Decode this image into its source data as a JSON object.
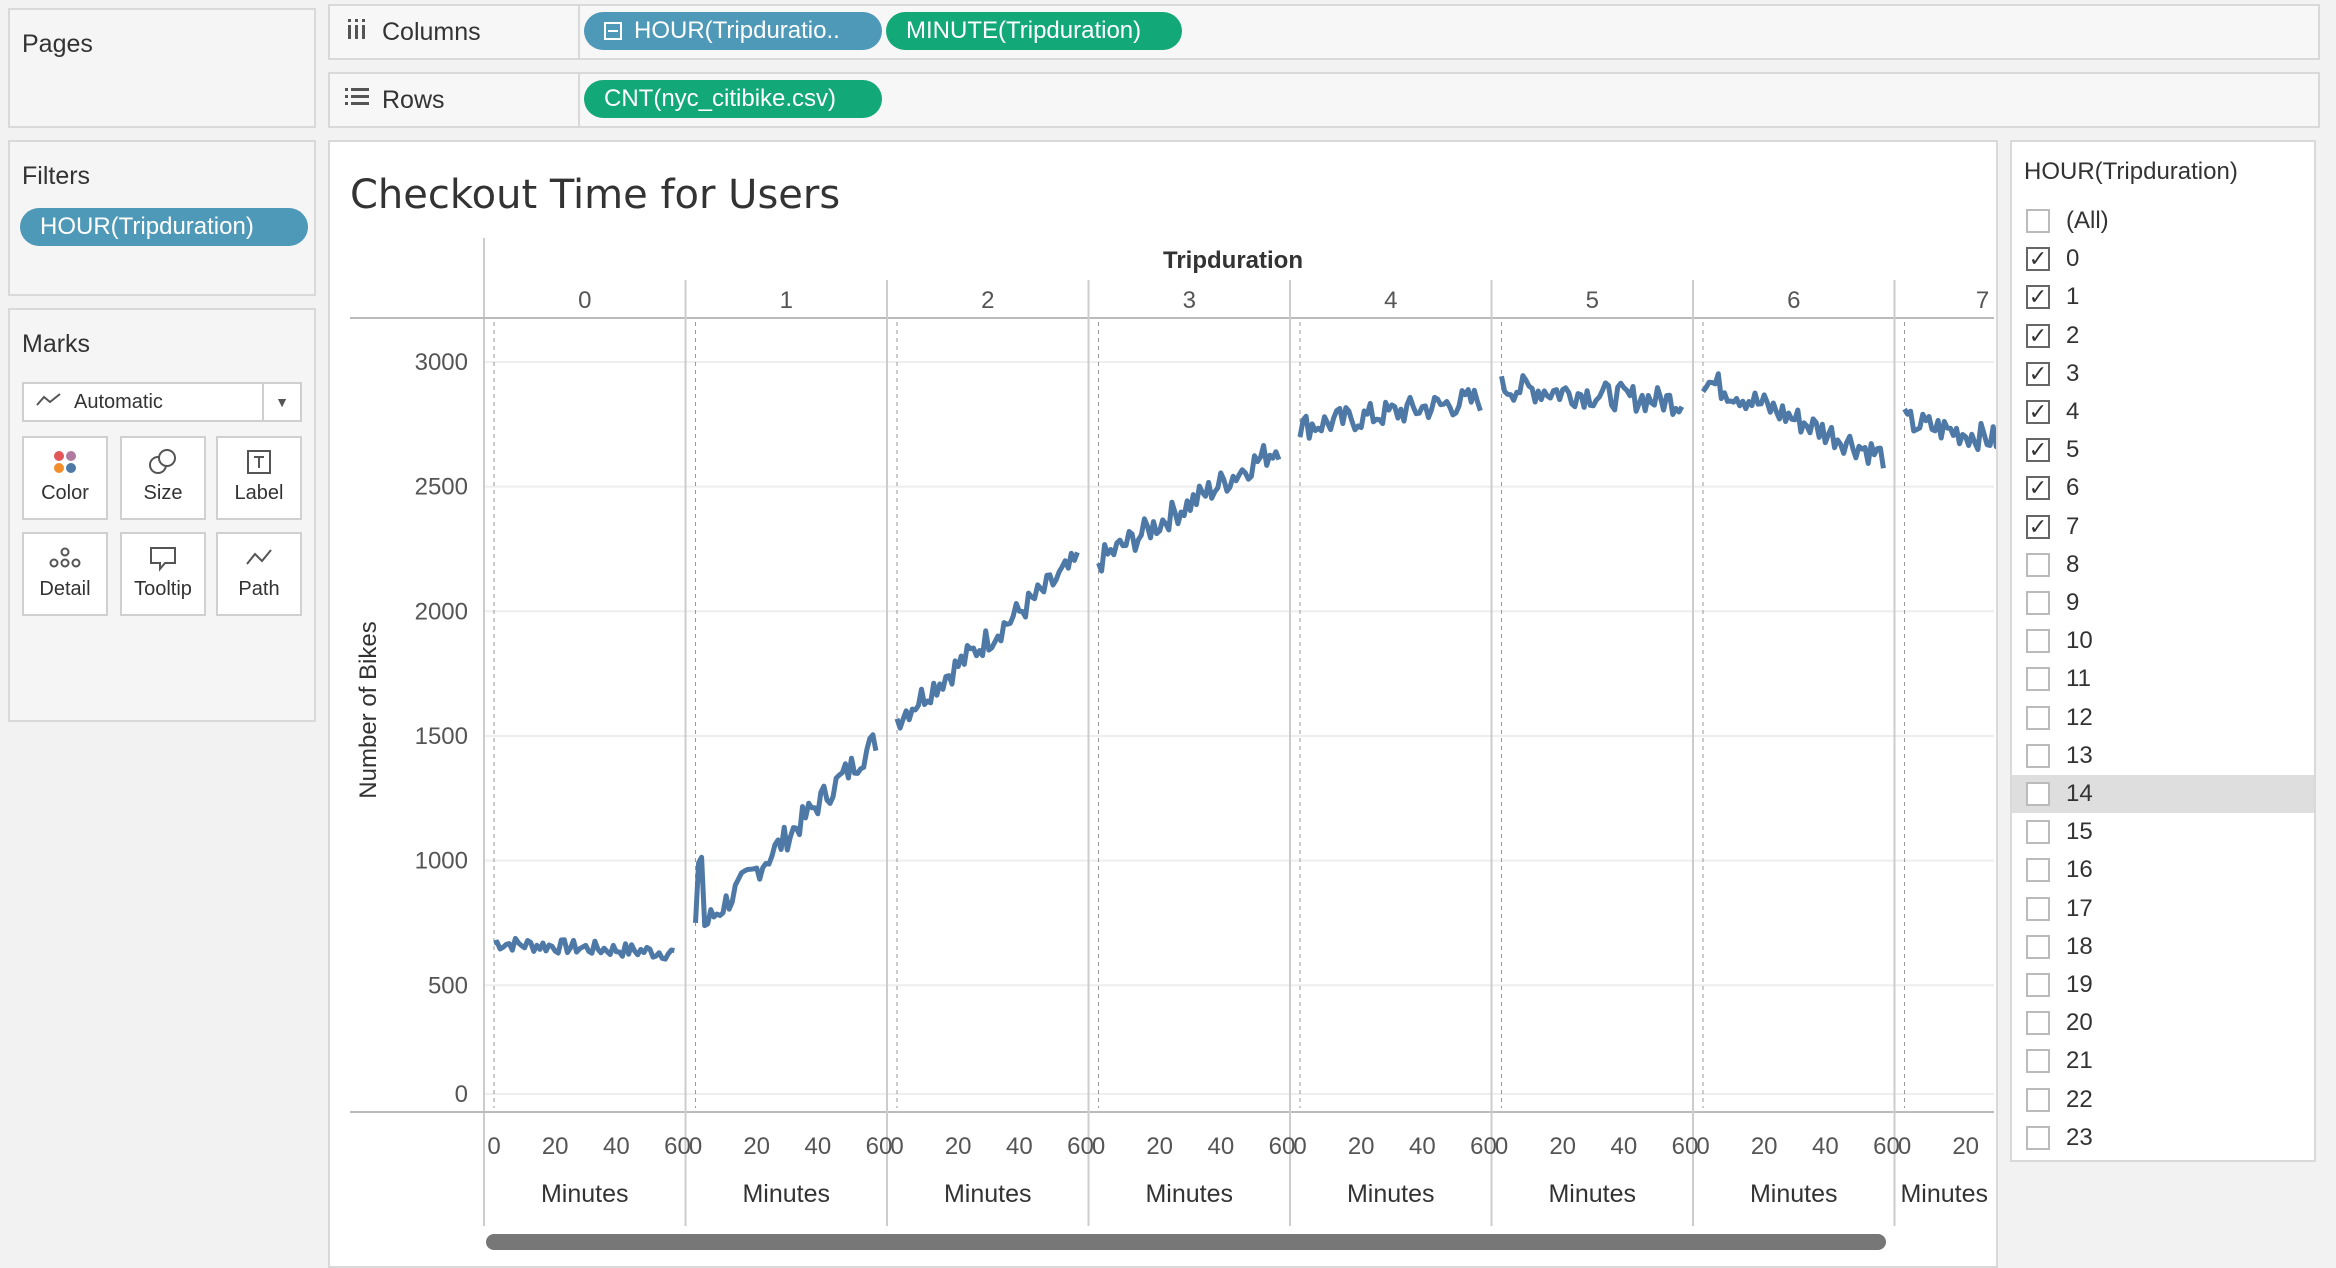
{
  "pages": {
    "title": "Pages"
  },
  "columns_shelf": {
    "label": "Columns",
    "pills": [
      "HOUR(Tripduratio..",
      "MINUTE(Tripduration)"
    ]
  },
  "rows_shelf": {
    "label": "Rows",
    "pills": [
      "CNT(nyc_citibike.csv)"
    ]
  },
  "filters": {
    "title": "Filters",
    "pills": [
      "HOUR(Tripduration)"
    ]
  },
  "marks": {
    "title": "Marks",
    "type": "Automatic",
    "buttons": [
      "Color",
      "Size",
      "Label",
      "Detail",
      "Tooltip",
      "Path"
    ]
  },
  "chart": {
    "title": "Checkout Time for Users",
    "header": "Tripduration",
    "ylabel": "Number of Bikes",
    "panel_xlabel": "Minutes",
    "line_color": "#4e79a7"
  },
  "chart_data": {
    "type": "line",
    "title": "Checkout Time for Users",
    "column_header": "Tripduration",
    "ylabel": "Number of Bikes",
    "xlabel": "Minutes",
    "ylim": [
      0,
      3000
    ],
    "yticks": [
      0,
      500,
      1000,
      1500,
      2000,
      2500,
      3000
    ],
    "xticks": [
      0,
      20,
      40,
      60
    ],
    "xlim": [
      0,
      59
    ],
    "panels": [
      {
        "hour": "0",
        "start": 670,
        "end": 630
      },
      {
        "hour": "1",
        "start": 700,
        "end": 1480
      },
      {
        "hour": "2",
        "start": 1570,
        "end": 2200
      },
      {
        "hour": "3",
        "start": 2200,
        "end": 2660
      },
      {
        "hour": "4",
        "start": 2740,
        "end": 2850
      },
      {
        "hour": "5",
        "start": 2900,
        "end": 2840
      },
      {
        "hour": "6",
        "start": 2930,
        "end": 2620
      },
      {
        "hour": "7",
        "start": 2760,
        "end": 2620
      }
    ]
  },
  "legend": {
    "title": "HOUR(Tripduration)",
    "items": [
      {
        "label": "(All)",
        "checked": false
      },
      {
        "label": "0",
        "checked": true
      },
      {
        "label": "1",
        "checked": true
      },
      {
        "label": "2",
        "checked": true
      },
      {
        "label": "3",
        "checked": true
      },
      {
        "label": "4",
        "checked": true
      },
      {
        "label": "5",
        "checked": true
      },
      {
        "label": "6",
        "checked": true
      },
      {
        "label": "7",
        "checked": true
      },
      {
        "label": "8",
        "checked": false
      },
      {
        "label": "9",
        "checked": false
      },
      {
        "label": "10",
        "checked": false
      },
      {
        "label": "11",
        "checked": false
      },
      {
        "label": "12",
        "checked": false
      },
      {
        "label": "13",
        "checked": false
      },
      {
        "label": "14",
        "checked": false
      },
      {
        "label": "15",
        "checked": false
      },
      {
        "label": "16",
        "checked": false
      },
      {
        "label": "17",
        "checked": false
      },
      {
        "label": "18",
        "checked": false
      },
      {
        "label": "19",
        "checked": false
      },
      {
        "label": "20",
        "checked": false
      },
      {
        "label": "21",
        "checked": false
      },
      {
        "label": "22",
        "checked": false
      },
      {
        "label": "23",
        "checked": false
      }
    ]
  }
}
